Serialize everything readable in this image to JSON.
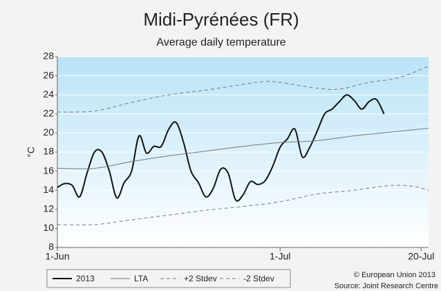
{
  "chart_data": {
    "type": "line",
    "title": "Midi-Pyrénées (FR)",
    "subtitle": "Average daily temperature",
    "y_label": "°C",
    "xlim": [
      0,
      50
    ],
    "xticks": [
      {
        "value": 0,
        "label": "1-Jun"
      },
      {
        "value": 30,
        "label": "1-Jul"
      },
      {
        "value": 49,
        "label": "20-Jul"
      }
    ],
    "ylim": [
      8,
      28
    ],
    "yticks": [
      8,
      10,
      12,
      14,
      16,
      18,
      20,
      22,
      24,
      26,
      28
    ],
    "grid": true,
    "legend": "bottom",
    "series": [
      {
        "name": "2013",
        "color": "#111111",
        "width": 2,
        "dash": false,
        "x": [
          0,
          1,
          2,
          3,
          4,
          5,
          6,
          7,
          8,
          9,
          10,
          11,
          12,
          13,
          14,
          15,
          16,
          17,
          18,
          19,
          20,
          21,
          22,
          23,
          24,
          25,
          26,
          27,
          28,
          29,
          30,
          31,
          32,
          33,
          34,
          35,
          36,
          37,
          38,
          39,
          40,
          41,
          42,
          43,
          44
        ],
        "values": [
          14.3,
          14.7,
          14.5,
          13.3,
          15.8,
          18.0,
          18.0,
          16.0,
          13.2,
          14.8,
          16.0,
          19.7,
          17.9,
          18.6,
          18.6,
          20.4,
          21.1,
          19.0,
          16.0,
          14.8,
          13.3,
          14.2,
          16.2,
          15.8,
          13.0,
          13.5,
          14.9,
          14.6,
          15.0,
          16.5,
          18.5,
          19.4,
          20.4,
          17.5,
          18.5,
          20.2,
          22.0,
          22.5,
          23.3,
          24.0,
          23.4,
          22.5,
          23.3,
          23.5,
          22.0
        ]
      },
      {
        "name": "LTA",
        "color": "#777777",
        "width": 1,
        "dash": false,
        "x": [
          0,
          5,
          10,
          15,
          20,
          25,
          30,
          35,
          40,
          45,
          50
        ],
        "values": [
          16.3,
          16.3,
          17.0,
          17.6,
          18.1,
          18.6,
          19.0,
          19.2,
          19.7,
          20.1,
          20.5
        ]
      },
      {
        "name": "+2 Stdev",
        "color": "#777777",
        "width": 1,
        "dash": true,
        "x": [
          0,
          5,
          10,
          15,
          20,
          25,
          28,
          30,
          35,
          38,
          42,
          46,
          50
        ],
        "values": [
          22.2,
          22.3,
          23.2,
          24.0,
          24.5,
          25.1,
          25.4,
          25.3,
          24.7,
          24.6,
          25.3,
          25.8,
          27.0
        ]
      },
      {
        "name": "-2 Stdev",
        "color": "#777777",
        "width": 1,
        "dash": true,
        "x": [
          0,
          5,
          10,
          15,
          20,
          25,
          30,
          35,
          40,
          45,
          48,
          50
        ],
        "values": [
          10.4,
          10.4,
          10.9,
          11.4,
          11.9,
          12.3,
          12.8,
          13.6,
          14.0,
          14.5,
          14.4,
          14.0
        ]
      }
    ],
    "notes": [
      "© European Union 2013",
      "Source: Joint Research Centre"
    ]
  }
}
